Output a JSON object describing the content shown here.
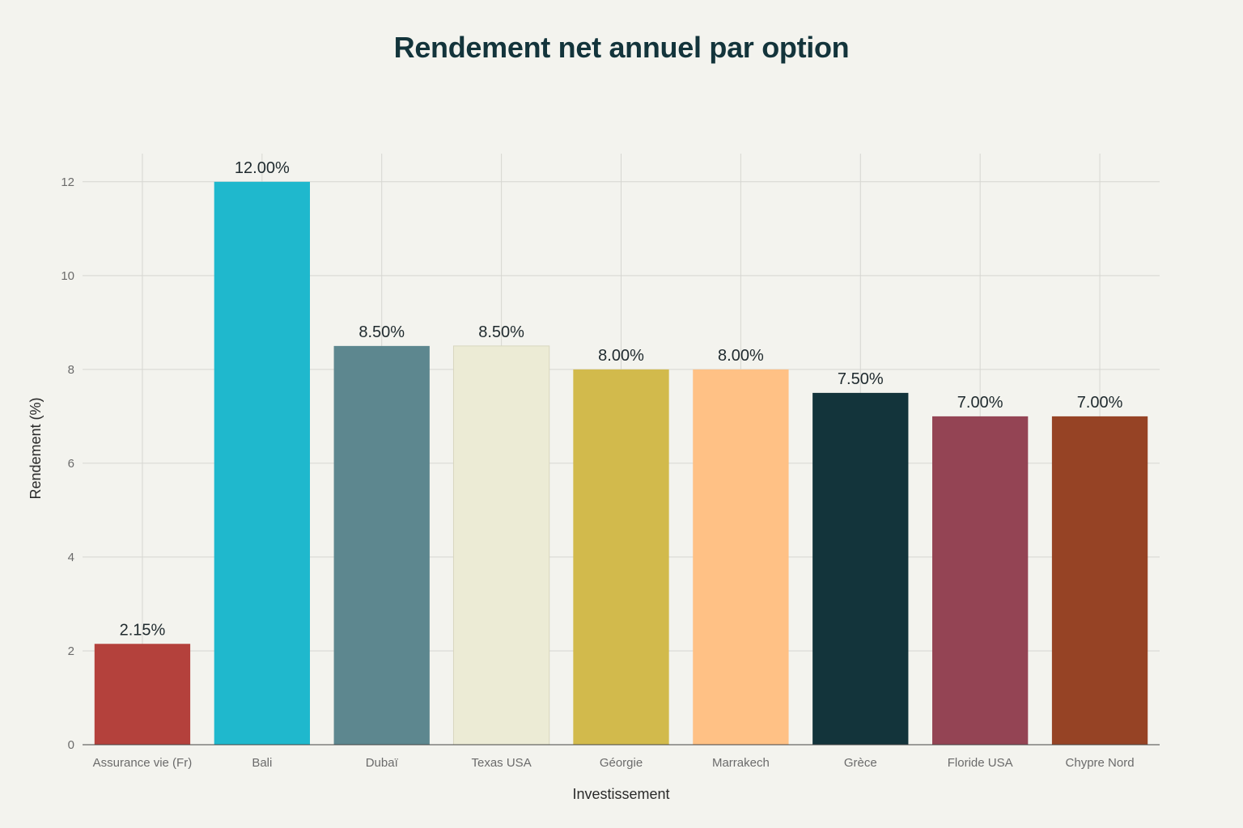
{
  "chart_data": {
    "type": "bar",
    "title": "Rendement net annuel par option",
    "xlabel": "Investissement",
    "ylabel": "Rendement (%)",
    "ylim": [
      0,
      12.6
    ],
    "yticks": [
      0,
      2,
      4,
      6,
      8,
      10,
      12
    ],
    "grid": true,
    "categories": [
      "Assurance vie (Fr)",
      "Bali",
      "Dubaï",
      "Texas USA",
      "Géorgie",
      "Marrakech",
      "Grèce",
      "Floride USA",
      "Chypre Nord"
    ],
    "values": [
      2.15,
      12.0,
      8.5,
      8.5,
      8.0,
      8.0,
      7.5,
      7.0,
      7.0
    ],
    "data_labels": [
      "2.15%",
      "12.00%",
      "8.50%",
      "8.50%",
      "8.00%",
      "8.00%",
      "7.50%",
      "7.00%",
      "7.00%"
    ],
    "colors": [
      "#b4413c",
      "#1fb8cd",
      "#5d878f",
      "#ecebd5",
      "#d2ba4c",
      "#ffc185",
      "#13343b",
      "#944454",
      "#964325"
    ]
  }
}
